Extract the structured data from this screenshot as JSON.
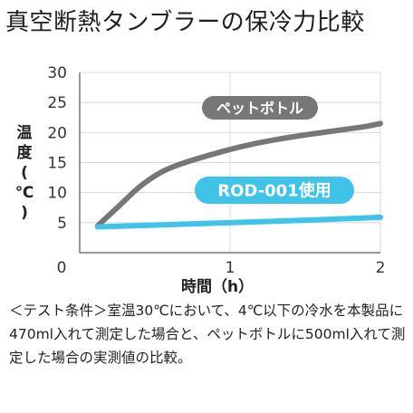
{
  "title": "真空断熱タンブラーの保冷力比較",
  "chart_data": {
    "type": "line",
    "ylabel_chars": [
      "温",
      "度",
      "(",
      "℃",
      ")"
    ],
    "xlabel": "時間（h）",
    "xlim": [
      0,
      2
    ],
    "ylim": [
      0,
      30
    ],
    "x_ticks": [
      "0",
      "1",
      "2"
    ],
    "y_ticks": [
      "5",
      "10",
      "15",
      "20",
      "25",
      "30"
    ],
    "grid": true,
    "series": [
      {
        "name": "ペットボトル",
        "color": "#777777",
        "x": [
          0.12,
          0.25,
          0.4,
          0.55,
          0.7,
          0.9,
          1.1,
          1.3,
          1.5,
          1.7,
          1.9,
          2.0
        ],
        "y": [
          4.5,
          7.5,
          11.0,
          13.5,
          15.0,
          16.5,
          17.8,
          18.8,
          19.6,
          20.3,
          21.0,
          21.5
        ]
      },
      {
        "name": "ROD-001使用",
        "color": "#3fc3e8",
        "x": [
          0.12,
          0.5,
          1.0,
          1.5,
          2.0
        ],
        "y": [
          4.3,
          4.6,
          5.0,
          5.4,
          5.9
        ]
      }
    ]
  },
  "note": "＜テスト条件＞室温30℃において、4℃以下の冷水を本製品に470ml入れて測定した場合と、ペットボトルに500ml入れて測定した場合の実測値の比較。"
}
